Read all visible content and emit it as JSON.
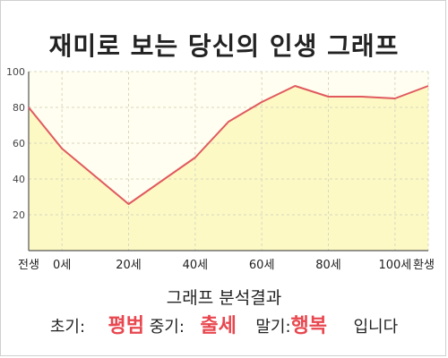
{
  "chart_data": {
    "type": "area",
    "title": "재미로 보는 당신의 인생 그래프",
    "categories": [
      "전생",
      "0세",
      "20세",
      "40세",
      "60세",
      "80세",
      "100세",
      "환생"
    ],
    "x": [
      -10,
      0,
      20,
      40,
      60,
      80,
      100,
      110
    ],
    "y": [
      80,
      57,
      26,
      52,
      83,
      86,
      85,
      92
    ],
    "points": [
      {
        "x": -10,
        "y": 80
      },
      {
        "x": 0,
        "y": 57
      },
      {
        "x": 20,
        "y": 26
      },
      {
        "x": 40,
        "y": 52
      },
      {
        "x": 50,
        "y": 72
      },
      {
        "x": 60,
        "y": 83
      },
      {
        "x": 70,
        "y": 92
      },
      {
        "x": 80,
        "y": 86
      },
      {
        "x": 90,
        "y": 86
      },
      {
        "x": 100,
        "y": 85
      },
      {
        "x": 110,
        "y": 92
      }
    ],
    "yticks": [
      20,
      40,
      60,
      80,
      100
    ],
    "ylim": [
      0,
      100
    ],
    "grid": true,
    "colors": {
      "line": "#e05a5f",
      "fill": "#fdf9c4",
      "grid": "#d8d8c0"
    }
  },
  "result": {
    "title": "그래프 분석결과",
    "early_label": "초기:",
    "early_value": "평범",
    "mid_label": "중기:",
    "mid_value": "출세",
    "late_label": "말기:",
    "late_value": "행복",
    "suffix": "입니다"
  }
}
